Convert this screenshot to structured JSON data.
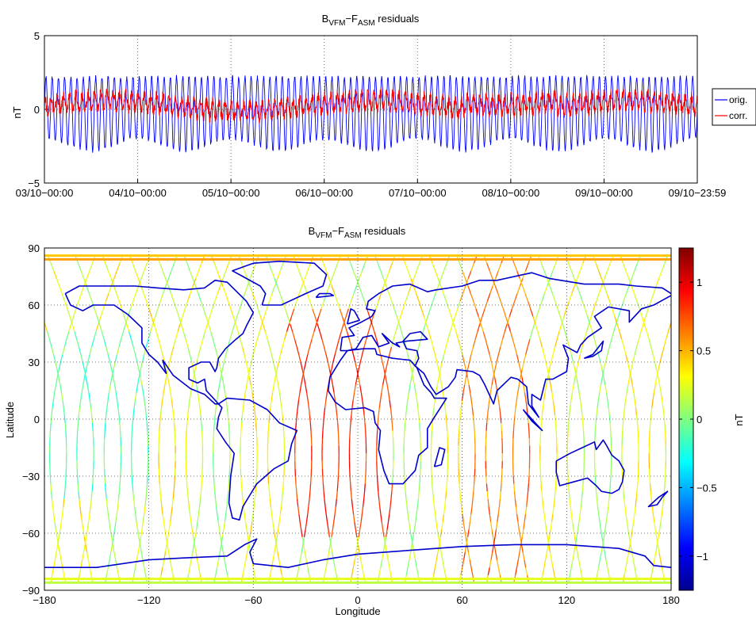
{
  "chart_data": [
    {
      "type": "line",
      "title": "Bᵥᶠᴹ − Fᴬˢᴹ residuals",
      "title_parts": {
        "b": "B",
        "b_sub": "VFM",
        "minus": "−",
        "f": "F",
        "f_sub": "ASM",
        "rest": " residuals"
      },
      "ylabel": "nT",
      "xlabel": "",
      "x_ticks": [
        "03/10−00:00",
        "04/10−00:00",
        "05/10−00:00",
        "06/10−00:00",
        "07/10−00:00",
        "08/10−00:00",
        "09/10−00:00",
        "09/10−23:59"
      ],
      "xlim_days": [
        0,
        7
      ],
      "ylim": [
        -5,
        5
      ],
      "y_ticks": [
        "5",
        "0",
        "−5"
      ],
      "grid": true,
      "legend_position": "outside-right",
      "series": [
        {
          "name": "orig.",
          "color": "#0000ff",
          "oscillation_amplitude_nT": [
            -2.4,
            2.2
          ],
          "cycles": 105
        },
        {
          "name": "corr.",
          "color": "#ff0000",
          "oscillation_amplitude_nT": [
            -1.0,
            1.0
          ],
          "cycles": 105
        }
      ]
    },
    {
      "type": "heatmap",
      "title": "Bᵥᶠᴹ − Fᴬˢᴹ residuals",
      "title_parts": {
        "b": "B",
        "b_sub": "VFM",
        "minus": "−",
        "f": "F",
        "f_sub": "ASM",
        "rest": " residuals"
      },
      "xlabel": "Longitude",
      "ylabel": "Latitude",
      "xlim": [
        -180,
        180
      ],
      "ylim": [
        -90,
        90
      ],
      "x_ticks": [
        "−180",
        "−120",
        "−60",
        "0",
        "60",
        "120",
        "180"
      ],
      "y_ticks": [
        "90",
        "60",
        "30",
        "0",
        "−30",
        "−60",
        "−90"
      ],
      "grid": true,
      "coastlines": true,
      "coastline_color": "#0000cc",
      "colorbar": {
        "label": "nT",
        "range": [
          -1.25,
          1.25
        ],
        "ticks": [
          "1",
          "0.5",
          "0",
          "−0.5",
          "−1"
        ],
        "colormap": "jet"
      }
    }
  ]
}
